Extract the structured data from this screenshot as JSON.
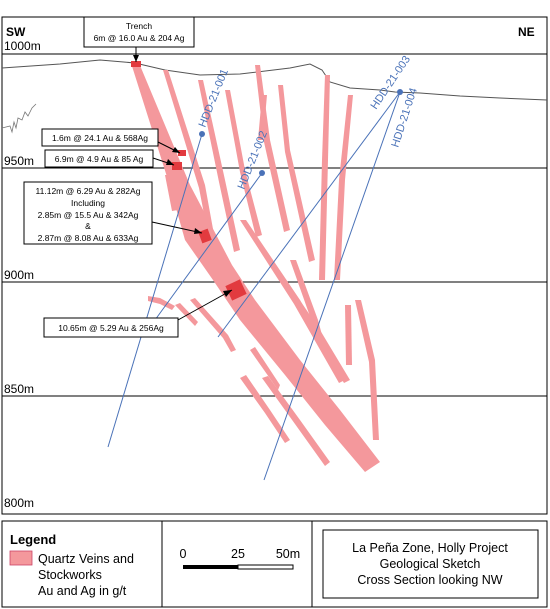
{
  "corners": {
    "left": "SW",
    "right": "NE"
  },
  "elevations": [
    {
      "label": "1000m",
      "value": 1000
    },
    {
      "label": "950m",
      "value": 950
    },
    {
      "label": "900m",
      "value": 900
    },
    {
      "label": "850m",
      "value": 850
    },
    {
      "label": "800m",
      "value": 800
    }
  ],
  "holes": [
    {
      "name": "HDD-21-001"
    },
    {
      "name": "HDD-21-002"
    },
    {
      "name": "HDD-21-003"
    },
    {
      "name": "HDD-21-004"
    }
  ],
  "callouts": {
    "trench": {
      "line1": "Trench",
      "line2": "6m @ 16.0 Au & 204 Ag"
    },
    "c1": "1.6m @ 24.1 Au & 568Ag",
    "c2": "6.9m @ 4.9 Au & 85 Ag",
    "c3": {
      "l1": "11.12m @ 6.29 Au & 282Ag",
      "l2": "Including",
      "l3": "2.85m @ 15.5 Au & 342Ag",
      "l4": "&",
      "l5": "2.87m @ 8.08 Au & 633Ag"
    },
    "c4": "10.65m @ 5.29 Au & 256Ag"
  },
  "legend": {
    "title": "Legend",
    "line1": "Quartz Veins and",
    "line2": "Stockworks",
    "line3": "Au and Ag in g/t",
    "swatch_color": "#f4989c"
  },
  "scale": {
    "t0": "0",
    "t1": "25",
    "t2": "50m"
  },
  "title_box": {
    "line1": "La Peña Zone, Holly Project",
    "line2": "Geological Sketch",
    "line3": "Cross Section looking NW"
  },
  "colors": {
    "vein": "#f4989c",
    "intercept": "#e23a3f",
    "drillhole": "#4a72b8"
  }
}
